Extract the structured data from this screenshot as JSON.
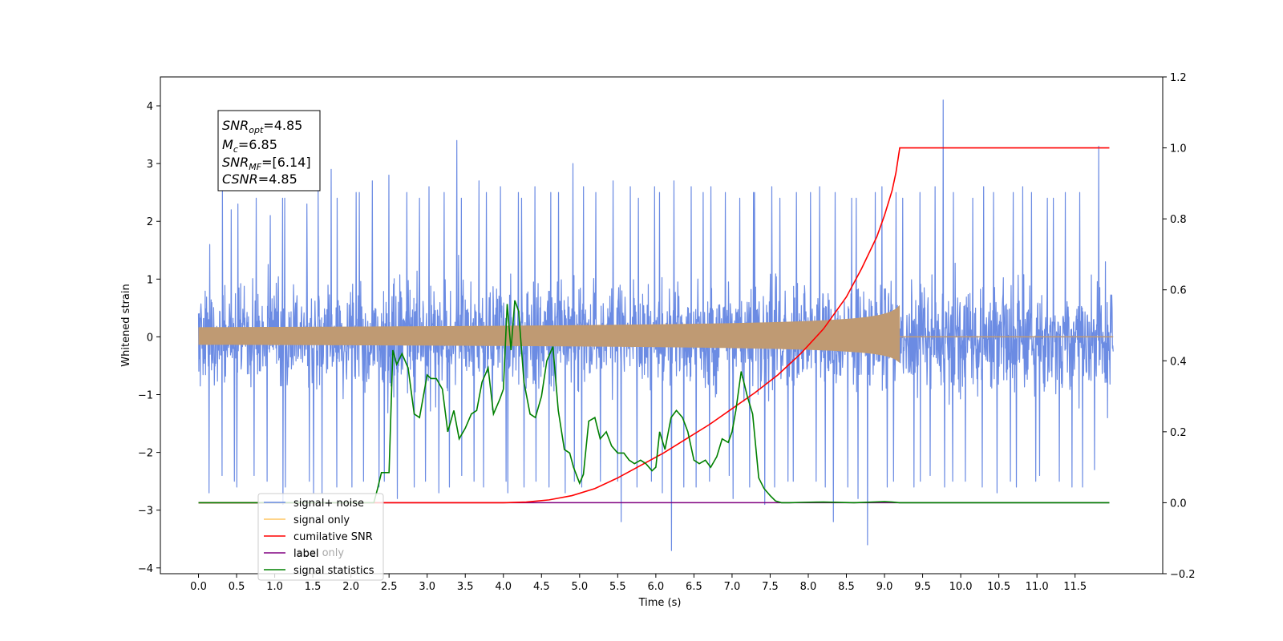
{
  "chart_data": {
    "type": "line",
    "xlabel": "Time (s)",
    "ylabel": "Whitened strain",
    "xlim": [
      -0.5,
      12.65
    ],
    "ylim": [
      -4.1,
      4.5
    ],
    "ylim_right": [
      -0.2,
      1.2
    ],
    "x_ticks": [
      0.0,
      0.5,
      1.0,
      1.5,
      2.0,
      2.5,
      3.0,
      3.5,
      4.0,
      4.5,
      5.0,
      5.5,
      6.0,
      6.5,
      7.0,
      7.5,
      8.0,
      8.5,
      9.0,
      9.5,
      10.0,
      10.5,
      11.0,
      11.5
    ],
    "x_tick_labels": [
      "0.0",
      "0.5",
      "1.0",
      "1.5",
      "2.0",
      "2.5",
      "3.0",
      "3.5",
      "4.0",
      "4.5",
      "5.0",
      "5.5",
      "6.0",
      "6.5",
      "7.0",
      "7.5",
      "8.0",
      "8.5",
      "9.0",
      "9.5",
      "10.0",
      "10.5",
      "11.0",
      "11.5"
    ],
    "y_ticks": [
      -4,
      -3,
      -2,
      -1,
      0,
      1,
      2,
      3,
      4
    ],
    "y_tick_labels": [
      "−4",
      "−3",
      "−2",
      "−1",
      "0",
      "1",
      "2",
      "3",
      "4"
    ],
    "y_ticks_right": [
      -0.2,
      0.0,
      0.2,
      0.4,
      0.6,
      0.8,
      1.0,
      1.2
    ],
    "y_tick_labels_right": [
      "−0.2",
      "0.0",
      "0.2",
      "0.4",
      "0.6",
      "0.8",
      "1.0",
      "1.2"
    ],
    "noise": {
      "x_start": 0.0,
      "x_end": 12.0,
      "envelope_max": [
        1.6,
        2.6,
        2.2,
        2.3,
        2.4,
        2.1,
        2.4,
        2.5,
        2.3,
        2.6,
        2.9,
        2.4,
        2.5,
        2.5,
        2.7,
        2.8,
        2.5,
        2.4,
        2.6,
        2.5,
        3.4,
        2.4,
        2.7,
        2.5,
        2.6,
        2.5,
        2.4,
        2.6,
        2.5,
        2.5,
        3.0,
        2.6,
        2.5,
        2.7,
        2.6,
        2.4,
        2.6,
        2.5,
        2.7,
        2.6,
        2.5,
        2.6,
        2.5,
        2.4,
        2.5,
        2.5,
        2.6,
        2.4,
        2.5,
        2.5,
        2.6,
        2.5,
        2.4,
        2.4,
        2.5,
        2.6,
        2.5,
        2.4,
        2.5,
        2.6,
        4.1,
        2.5,
        2.4,
        2.6,
        2.5,
        2.5,
        2.6,
        2.5,
        2.4,
        2.4,
        2.5,
        2.5,
        3.3,
        1.3
      ],
      "envelope_min": [
        -2.7,
        -2.4,
        -2.5,
        -2.6,
        -2.4,
        -2.5,
        -2.9,
        -2.6,
        -2.5,
        -2.7,
        -2.9,
        -2.6,
        -2.6,
        -2.5,
        -2.6,
        -2.5,
        -2.8,
        -2.6,
        -2.5,
        -2.7,
        -2.6,
        -2.4,
        -2.5,
        -2.6,
        -2.5,
        -2.7,
        -2.6,
        -2.5,
        -2.6,
        -2.7,
        -2.5,
        -2.6,
        -2.5,
        -2.5,
        -3.2,
        -2.6,
        -2.5,
        -2.7,
        -3.7,
        -2.6,
        -2.6,
        -2.5,
        -2.4,
        -2.8,
        -2.6,
        -2.9,
        -2.6,
        -2.5,
        -2.5,
        -2.5,
        -2.6,
        -3.2,
        -2.6,
        -2.8,
        -3.6,
        -2.6,
        -2.5,
        -2.6,
        -2.5,
        -2.4,
        -2.6,
        -2.5,
        -2.5,
        -2.6,
        -2.7,
        -2.5,
        -2.6,
        -2.5,
        -2.4,
        -2.5,
        -2.6,
        -2.6,
        -2.3,
        -1.4
      ]
    },
    "signal": {
      "t_start": 0.0,
      "t_merge": 9.2,
      "final_amp_upper": 0.55,
      "final_amp_lower": -0.45
    },
    "cumulative_snr": {
      "x": [
        0.0,
        4.0,
        4.3,
        4.6,
        4.9,
        5.2,
        5.5,
        5.8,
        6.1,
        6.4,
        6.7,
        7.0,
        7.3,
        7.6,
        7.9,
        8.2,
        8.5,
        8.7,
        8.9,
        9.0,
        9.1,
        9.15,
        9.2,
        11.95
      ],
      "y": [
        0.0,
        0.0,
        0.002,
        0.008,
        0.02,
        0.04,
        0.07,
        0.105,
        0.14,
        0.18,
        0.22,
        0.265,
        0.31,
        0.36,
        0.42,
        0.49,
        0.58,
        0.66,
        0.75,
        0.81,
        0.88,
        0.93,
        1.0,
        1.0
      ]
    },
    "label_line": {
      "x": [
        0.0,
        11.95
      ],
      "y": [
        0.0,
        0.0
      ]
    },
    "signal_statistics": {
      "x": [
        0.0,
        2.3,
        2.35,
        2.4,
        2.5,
        2.55,
        2.6,
        2.67,
        2.75,
        2.83,
        2.9,
        3.0,
        3.05,
        3.12,
        3.2,
        3.27,
        3.35,
        3.42,
        3.5,
        3.58,
        3.65,
        3.72,
        3.8,
        3.87,
        3.95,
        4.0,
        4.05,
        4.1,
        4.15,
        4.2,
        4.27,
        4.35,
        4.42,
        4.5,
        4.57,
        4.65,
        4.72,
        4.8,
        4.87,
        4.92,
        5.0,
        5.05,
        5.12,
        5.2,
        5.27,
        5.35,
        5.42,
        5.5,
        5.58,
        5.65,
        5.72,
        5.8,
        5.87,
        5.95,
        6.0,
        6.05,
        6.12,
        6.2,
        6.27,
        6.35,
        6.42,
        6.5,
        6.57,
        6.65,
        6.72,
        6.8,
        6.87,
        6.95,
        7.0,
        7.05,
        7.12,
        7.2,
        7.27,
        7.35,
        7.42,
        7.5,
        7.57,
        7.65,
        7.75,
        7.9,
        8.2,
        8.6,
        9.0,
        9.1,
        9.2,
        9.6,
        11.95
      ],
      "y": [
        0.0,
        0.0,
        0.04,
        0.085,
        0.085,
        0.43,
        0.39,
        0.42,
        0.38,
        0.25,
        0.24,
        0.36,
        0.35,
        0.35,
        0.32,
        0.2,
        0.26,
        0.18,
        0.21,
        0.25,
        0.26,
        0.34,
        0.38,
        0.25,
        0.29,
        0.32,
        0.56,
        0.43,
        0.57,
        0.54,
        0.34,
        0.25,
        0.24,
        0.3,
        0.4,
        0.44,
        0.26,
        0.15,
        0.14,
        0.1,
        0.055,
        0.08,
        0.23,
        0.24,
        0.18,
        0.2,
        0.16,
        0.14,
        0.14,
        0.12,
        0.11,
        0.12,
        0.11,
        0.09,
        0.1,
        0.2,
        0.15,
        0.24,
        0.26,
        0.24,
        0.2,
        0.12,
        0.11,
        0.12,
        0.1,
        0.13,
        0.18,
        0.17,
        0.2,
        0.26,
        0.37,
        0.3,
        0.25,
        0.07,
        0.04,
        0.02,
        0.005,
        0.0,
        0.0,
        0.001,
        0.002,
        0.0,
        0.003,
        0.002,
        0.0,
        0.0,
        0.0
      ]
    },
    "legend": [
      {
        "name": "signal+ noise",
        "color": "#6B8BE3"
      },
      {
        "name": "signal only",
        "color": "#FFC562"
      },
      {
        "name": "cumilative SNR",
        "color": "#FF0000"
      },
      {
        "name": "label",
        "color": "#800080"
      },
      {
        "name": "signal statistics",
        "color": "#008000"
      }
    ],
    "legend_ghost_text": "label only",
    "annotation": {
      "snr_opt_base": "SNR",
      "snr_opt_sub": "opt",
      "snr_opt_value": "=4.85",
      "mc_base": "M",
      "mc_sub": "c",
      "mc_value": "=6.85",
      "snr_mf_base": "SNR",
      "snr_mf_sub": "MF",
      "snr_mf_value": "=[6.14]",
      "csnr_base": "CSNR",
      "csnr_value": "=4.85"
    },
    "colors": {
      "noise": "#6B8BE3",
      "signal": "#FFC562",
      "signal_overlap": "#BF9A73",
      "cumulative_snr": "#FF0000",
      "label": "#800080",
      "signal_statistics": "#008000"
    }
  }
}
